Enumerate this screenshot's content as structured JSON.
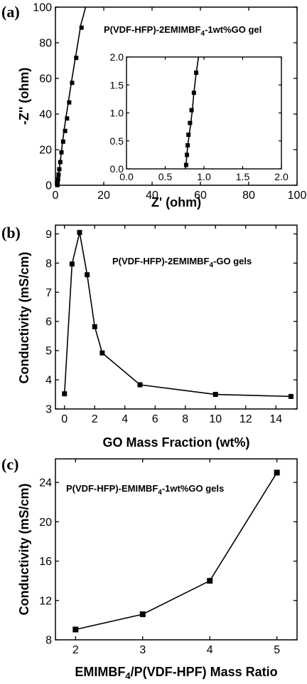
{
  "colors": {
    "ink": "#000000",
    "background": "#ffffff"
  },
  "chart_data": [
    {
      "panel": "(a)",
      "type": "scatter",
      "mode": "line+markers",
      "title": "",
      "annotation": "P(VDF-HFP)-2EMIMBF4-1wt%GO gel",
      "xlabel": "Z' (ohm)",
      "ylabel": "-Z'' (ohm)",
      "xlim": [
        0,
        100
      ],
      "ylim": [
        0,
        100
      ],
      "xticks": [
        0,
        20,
        40,
        60,
        80,
        100
      ],
      "yticks": [
        0,
        20,
        40,
        60,
        80,
        100
      ],
      "grid": false,
      "points": [
        [
          0.78,
          0.1
        ],
        [
          0.8,
          0.3
        ],
        [
          0.82,
          0.5
        ],
        [
          0.84,
          0.7
        ],
        [
          0.86,
          0.9
        ],
        [
          0.88,
          1.1
        ],
        [
          0.9,
          1.4
        ],
        [
          0.93,
          1.8
        ],
        [
          1.0,
          2.5
        ],
        [
          1.1,
          3.5
        ],
        [
          1.2,
          5.0
        ],
        [
          1.4,
          7.0
        ],
        [
          1.6,
          9.0
        ],
        [
          1.8,
          11.5
        ],
        [
          2.1,
          14.5
        ],
        [
          2.4,
          18.0
        ],
        [
          2.8,
          22.5
        ],
        [
          3.2,
          27.0
        ],
        [
          3.7,
          32.0
        ],
        [
          4.3,
          37.5
        ],
        [
          5.1,
          44.5
        ],
        [
          6.0,
          52.5
        ],
        [
          7.1,
          62.0
        ],
        [
          8.7,
          75.0
        ],
        [
          10.5,
          90.0
        ],
        [
          12.5,
          100.0
        ]
      ],
      "markers": [
        [
          0.78,
          0.1
        ],
        [
          0.8,
          0.3
        ],
        [
          0.82,
          0.5
        ],
        [
          0.84,
          0.7
        ],
        [
          0.88,
          1.1
        ],
        [
          0.93,
          1.8
        ],
        [
          1.1,
          3.5
        ],
        [
          1.3,
          6.0
        ],
        [
          1.6,
          9.0
        ],
        [
          2.0,
          13.0
        ],
        [
          2.5,
          18.5
        ],
        [
          3.2,
          24.5
        ],
        [
          4.0,
          30.5
        ],
        [
          4.8,
          37.5
        ],
        [
          5.7,
          46.5
        ],
        [
          6.9,
          57.5
        ],
        [
          8.6,
          71.5
        ],
        [
          10.8,
          88.5
        ]
      ],
      "inset": {
        "xlim": [
          0,
          2.0
        ],
        "ylim": [
          0,
          2.0
        ],
        "xticks": [
          "0.0",
          "0.5",
          "1.0",
          "1.5",
          "2.0"
        ],
        "yticks": [
          "0.0",
          "0.5",
          "1.0",
          "1.5",
          "2.0"
        ],
        "xtick_values": [
          0,
          0.5,
          1.0,
          1.5,
          2.0
        ],
        "ytick_values": [
          0,
          0.5,
          1.0,
          1.5,
          2.0
        ],
        "points": [
          [
            0.76,
            0.0
          ],
          [
            0.77,
            0.1
          ],
          [
            0.78,
            0.25
          ],
          [
            0.79,
            0.42
          ],
          [
            0.81,
            0.61
          ],
          [
            0.83,
            0.82
          ],
          [
            0.85,
            1.05
          ],
          [
            0.87,
            1.36
          ],
          [
            0.9,
            1.72
          ],
          [
            0.93,
            2.0
          ]
        ],
        "markers": [
          [
            0.77,
            0.07
          ],
          [
            0.78,
            0.25
          ],
          [
            0.79,
            0.42
          ],
          [
            0.8,
            0.61
          ],
          [
            0.82,
            0.82
          ],
          [
            0.84,
            1.05
          ],
          [
            0.87,
            1.36
          ],
          [
            0.9,
            1.72
          ]
        ]
      }
    },
    {
      "panel": "(b)",
      "type": "line",
      "title": "",
      "annotation": "P(VDF-HFP)-2EMIMBF4-GO gels",
      "xlabel": "GO Mass Fraction (wt%)",
      "ylabel": "Conductivity (mS/cm)",
      "xlim": [
        -0.6,
        15.4
      ],
      "ylim": [
        3,
        9.3
      ],
      "xticks": [
        0,
        2,
        4,
        6,
        8,
        10,
        12,
        14
      ],
      "yticks": [
        3,
        4,
        5,
        6,
        7,
        8,
        9
      ],
      "grid": false,
      "x": [
        0,
        0.5,
        1,
        1.5,
        2,
        2.5,
        5,
        10,
        15
      ],
      "y": [
        3.52,
        7.97,
        9.05,
        7.6,
        5.82,
        4.92,
        3.83,
        3.5,
        3.43
      ]
    },
    {
      "panel": "(c)",
      "type": "line",
      "title": "",
      "annotation": "P(VDF-HFP)-EMIMBF4-1wt%GO gels",
      "xlabel": "EMIMBF4/P(VDF-HPF) Mass Ratio",
      "ylabel": "Conductivity (mS/cm)",
      "xlim": [
        1.7,
        5.3
      ],
      "ylim": [
        8,
        26.4
      ],
      "xticks": [
        2,
        3,
        4,
        5
      ],
      "yticks": [
        8,
        12,
        16,
        20,
        24
      ],
      "grid": false,
      "x": [
        2,
        3,
        4,
        5
      ],
      "y": [
        9.05,
        10.6,
        14.0,
        25.0
      ]
    }
  ]
}
